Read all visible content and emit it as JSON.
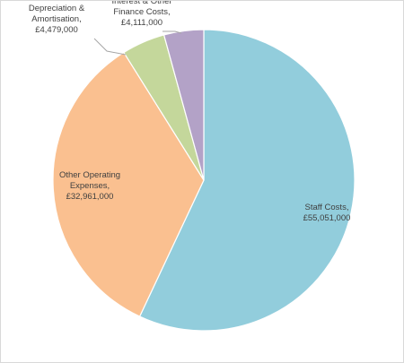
{
  "chart_data": {
    "type": "pie",
    "title": "",
    "categories": [
      "Staff Costs",
      "Other Operating Expenses",
      "Depreciation & Amortisation",
      "Interest & Other Finance Costs"
    ],
    "values": [
      55051000,
      32961000,
      4479000,
      4111000
    ],
    "data_labels": [
      {
        "lines": [
          "Staff Costs,",
          "£55,051,000"
        ]
      },
      {
        "lines": [
          "Other Operating",
          "Expenses,",
          "£32,961,000"
        ]
      },
      {
        "lines": [
          "Depreciation &",
          "Amortisation,",
          "£4,479,000"
        ]
      },
      {
        "lines": [
          "Interest & Other",
          "Finance Costs,",
          "£4,111,000"
        ]
      }
    ],
    "colors": [
      "#92CDDC",
      "#FAC090",
      "#C4D79B",
      "#B3A2C7"
    ],
    "start": "12 o'clock",
    "direction": "clockwise",
    "legend": "none"
  }
}
